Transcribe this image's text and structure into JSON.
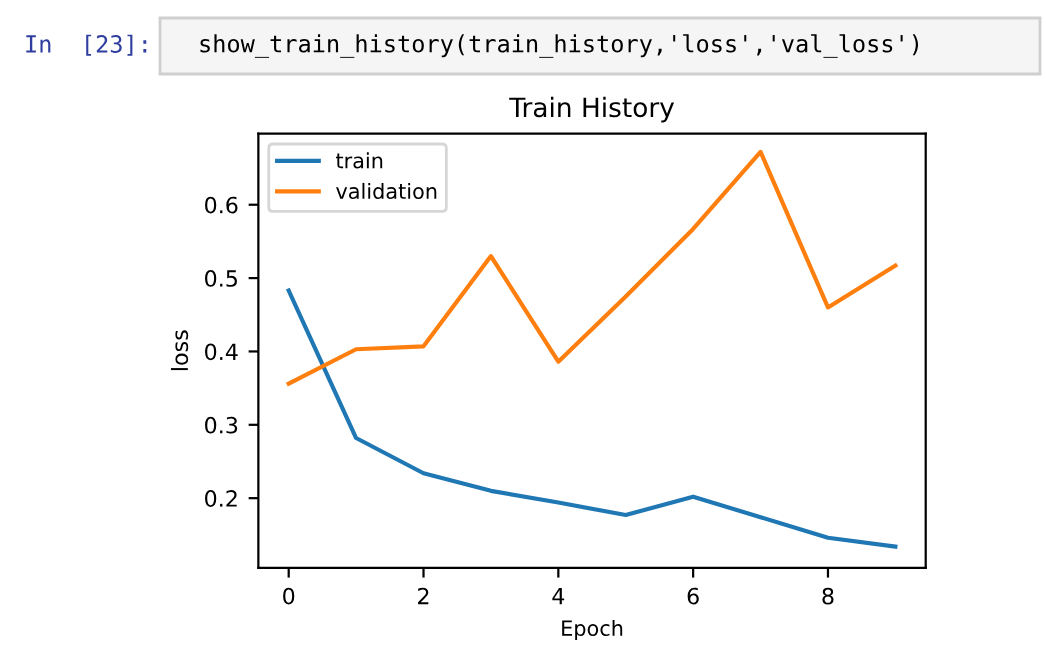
{
  "chart_data": {
    "type": "line",
    "title": "Train History",
    "xlabel": "Epoch",
    "ylabel": "loss",
    "annotations": [
      "In  [23]:",
      "show_train_history(train_history,'loss','val_loss')"
    ],
    "x": [
      0,
      1,
      2,
      3,
      4,
      5,
      6,
      7,
      8,
      9
    ],
    "series": [
      {
        "name": "train",
        "color": "#1f77b4",
        "values": [
          0.483,
          0.282,
          0.234,
          0.21,
          0.194,
          0.177,
          0.202,
          0.174,
          0.146,
          0.134
        ]
      },
      {
        "name": "validation",
        "color": "#ff7f0e",
        "values": [
          0.356,
          0.403,
          0.407,
          0.53,
          0.386,
          0.475,
          0.567,
          0.672,
          0.46,
          0.517
        ]
      }
    ],
    "xlim": [
      -0.45,
      9.45
    ],
    "ylim": [
      0.105,
      0.697
    ],
    "xticks": [
      0,
      2,
      4,
      6,
      8
    ],
    "yticks": [
      0.2,
      0.3,
      0.4,
      0.5,
      0.6
    ],
    "legend": "top left",
    "grid": false
  }
}
